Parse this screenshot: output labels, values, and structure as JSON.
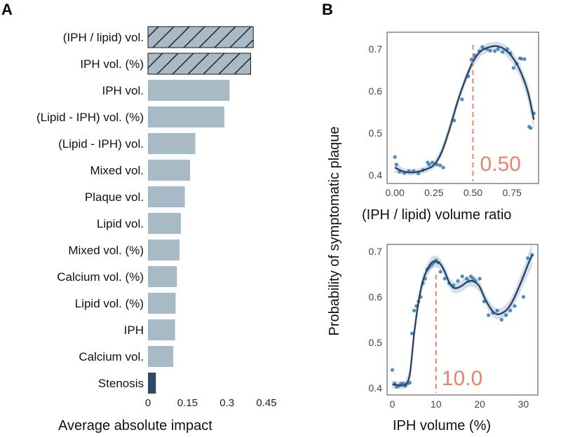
{
  "panel_labels": {
    "a": "A",
    "b": "B"
  },
  "colors": {
    "bar": "#a7bac6",
    "bar_highlight": "#2e4a66",
    "curve": "#2b4462",
    "ribbon": "#c5d4e6",
    "point": "#3d7fb8",
    "annotation": "#e5866a",
    "panel_border": "#444444"
  },
  "chart_data": [
    {
      "id": "A",
      "type": "bar",
      "orientation": "horizontal",
      "categories": [
        "(IPH / lipid) vol.",
        "IPH vol. (%)",
        "IPH vol.",
        "(Lipid - IPH) vol. (%)",
        "(Lipid - IPH) vol.",
        "Mixed vol.",
        "Plaque vol.",
        "Lipid vol.",
        "Mixed vol. (%)",
        "Calcium vol. (%)",
        "Lipid vol. (%)",
        "IPH",
        "Calcium vol.",
        "Stenosis"
      ],
      "values": [
        0.4,
        0.39,
        0.31,
        0.29,
        0.18,
        0.16,
        0.14,
        0.125,
        0.12,
        0.11,
        0.105,
        0.103,
        0.096,
        0.03
      ],
      "hatched": [
        "(IPH / lipid) vol.",
        "IPH vol. (%)"
      ],
      "highlighted": [
        "Stenosis"
      ],
      "xlabel": "Average absolute impact",
      "xlim": [
        0,
        0.45
      ],
      "xticks": [
        0,
        0.15,
        0.3,
        0.45
      ],
      "xtick_labels": [
        "0",
        "0.15",
        "0.3",
        "0.45"
      ]
    },
    {
      "id": "B-top",
      "type": "scatter",
      "xlabel": "(IPH / lipid) volume ratio",
      "ylabel": "Probability of symptomatic plaque",
      "xlim": [
        -0.05,
        0.92
      ],
      "ylim": [
        0.38,
        0.74
      ],
      "xticks": [
        0,
        0.25,
        0.5,
        0.75
      ],
      "xtick_labels": [
        "0.00",
        "0.25",
        "0.50",
        "0.75"
      ],
      "yticks": [
        0.4,
        0.5,
        0.6,
        0.7
      ],
      "ytick_labels": [
        "0.4",
        "0.5",
        "0.6",
        "0.7"
      ],
      "threshold": 0.5,
      "threshold_label": "0.50",
      "smooth_curve": [
        [
          0,
          0.418
        ],
        [
          0.05,
          0.409
        ],
        [
          0.1,
          0.406
        ],
        [
          0.15,
          0.408
        ],
        [
          0.2,
          0.414
        ],
        [
          0.25,
          0.424
        ],
        [
          0.3,
          0.455
        ],
        [
          0.35,
          0.51
        ],
        [
          0.4,
          0.573
        ],
        [
          0.45,
          0.626
        ],
        [
          0.5,
          0.67
        ],
        [
          0.55,
          0.695
        ],
        [
          0.6,
          0.704
        ],
        [
          0.65,
          0.707
        ],
        [
          0.7,
          0.7
        ],
        [
          0.75,
          0.682
        ],
        [
          0.8,
          0.65
        ],
        [
          0.85,
          0.6
        ],
        [
          0.89,
          0.532
        ]
      ],
      "ribbon_halfwidth": [
        0.012,
        0.008,
        0.007,
        0.007,
        0.008,
        0.009,
        0.011,
        0.012,
        0.012,
        0.012,
        0.012,
        0.011,
        0.011,
        0.011,
        0.012,
        0.014,
        0.016,
        0.02,
        0.026
      ],
      "points": [
        [
          0.0,
          0.443
        ],
        [
          0.01,
          0.425
        ],
        [
          0.03,
          0.408
        ],
        [
          0.06,
          0.405
        ],
        [
          0.09,
          0.41
        ],
        [
          0.12,
          0.41
        ],
        [
          0.15,
          0.404
        ],
        [
          0.18,
          0.412
        ],
        [
          0.21,
          0.43
        ],
        [
          0.22,
          0.425
        ],
        [
          0.24,
          0.43
        ],
        [
          0.27,
          0.425
        ],
        [
          0.29,
          0.423
        ],
        [
          0.31,
          0.418
        ],
        [
          0.38,
          0.53
        ],
        [
          0.43,
          0.58
        ],
        [
          0.47,
          0.635
        ],
        [
          0.49,
          0.675
        ],
        [
          0.51,
          0.685
        ],
        [
          0.54,
          0.695
        ],
        [
          0.56,
          0.705
        ],
        [
          0.59,
          0.7
        ],
        [
          0.61,
          0.696
        ],
        [
          0.64,
          0.695
        ],
        [
          0.66,
          0.7
        ],
        [
          0.69,
          0.693
        ],
        [
          0.72,
          0.7
        ],
        [
          0.74,
          0.69
        ],
        [
          0.76,
          0.655
        ],
        [
          0.78,
          0.665
        ],
        [
          0.8,
          0.678
        ],
        [
          0.81,
          0.677
        ],
        [
          0.83,
          0.676
        ],
        [
          0.86,
          0.515
        ],
        [
          0.87,
          0.512
        ],
        [
          0.89,
          0.547
        ]
      ]
    },
    {
      "id": "B-bottom",
      "type": "scatter",
      "xlabel": "IPH volume (%)",
      "ylabel": "Probability of symptomatic plaque",
      "xlim": [
        -1.2,
        33.3
      ],
      "ylim": [
        0.385,
        0.715
      ],
      "xticks": [
        0,
        10,
        20,
        30
      ],
      "xtick_labels": [
        "0",
        "10",
        "20",
        "30"
      ],
      "yticks": [
        0.4,
        0.5,
        0.6,
        0.7
      ],
      "ytick_labels": [
        "0.4",
        "0.5",
        "0.6",
        "0.7"
      ],
      "threshold": 10,
      "threshold_label": "10.0",
      "smooth_curve": [
        [
          0,
          0.408
        ],
        [
          1,
          0.407
        ],
        [
          2,
          0.406
        ],
        [
          3,
          0.408
        ],
        [
          4,
          0.43
        ],
        [
          5,
          0.52
        ],
        [
          6,
          0.59
        ],
        [
          7,
          0.635
        ],
        [
          8,
          0.66
        ],
        [
          9,
          0.675
        ],
        [
          10,
          0.678
        ],
        [
          11,
          0.672
        ],
        [
          12,
          0.655
        ],
        [
          13,
          0.632
        ],
        [
          14,
          0.62
        ],
        [
          15,
          0.62
        ],
        [
          16,
          0.625
        ],
        [
          17,
          0.632
        ],
        [
          18,
          0.635
        ],
        [
          19,
          0.632
        ],
        [
          20,
          0.622
        ],
        [
          21,
          0.6
        ],
        [
          22,
          0.582
        ],
        [
          23,
          0.568
        ],
        [
          24,
          0.562
        ],
        [
          25,
          0.564
        ],
        [
          26,
          0.57
        ],
        [
          27,
          0.582
        ],
        [
          28,
          0.6
        ],
        [
          29,
          0.622
        ],
        [
          30,
          0.645
        ],
        [
          31,
          0.67
        ],
        [
          32,
          0.692
        ]
      ],
      "ribbon_halfwidth": [
        0.009,
        0.008,
        0.008,
        0.009,
        0.011,
        0.014,
        0.016,
        0.016,
        0.015,
        0.014,
        0.013,
        0.012,
        0.012,
        0.012,
        0.012,
        0.012,
        0.012,
        0.012,
        0.012,
        0.012,
        0.012,
        0.012,
        0.012,
        0.012,
        0.012,
        0.012,
        0.013,
        0.014,
        0.015,
        0.017,
        0.019,
        0.022,
        0.025
      ],
      "points": [
        [
          0,
          0.44
        ],
        [
          0.5,
          0.41
        ],
        [
          1,
          0.403
        ],
        [
          1.5,
          0.405
        ],
        [
          2,
          0.41
        ],
        [
          2.5,
          0.41
        ],
        [
          3,
          0.405
        ],
        [
          3.5,
          0.41
        ],
        [
          4,
          0.412
        ],
        [
          4.5,
          0.52
        ],
        [
          5,
          0.57
        ],
        [
          5.5,
          0.58
        ],
        [
          6,
          0.59
        ],
        [
          6.5,
          0.6
        ],
        [
          7,
          0.63
        ],
        [
          7.5,
          0.64
        ],
        [
          8,
          0.66
        ],
        [
          8.5,
          0.665
        ],
        [
          9,
          0.67
        ],
        [
          9.5,
          0.675
        ],
        [
          10,
          0.68
        ],
        [
          10.5,
          0.675
        ],
        [
          11,
          0.655
        ],
        [
          12,
          0.64
        ],
        [
          13,
          0.63
        ],
        [
          14,
          0.625
        ],
        [
          15,
          0.635
        ],
        [
          16,
          0.645
        ],
        [
          17,
          0.64
        ],
        [
          17.5,
          0.635
        ],
        [
          18,
          0.645
        ],
        [
          18.5,
          0.64
        ],
        [
          19,
          0.635
        ],
        [
          20,
          0.64
        ],
        [
          21,
          0.59
        ],
        [
          22,
          0.56
        ],
        [
          23,
          0.565
        ],
        [
          24,
          0.57
        ],
        [
          25,
          0.55
        ],
        [
          26,
          0.56
        ],
        [
          27,
          0.57
        ],
        [
          28,
          0.58
        ],
        [
          30,
          0.6
        ],
        [
          31,
          0.685
        ],
        [
          32,
          0.692
        ]
      ]
    }
  ]
}
